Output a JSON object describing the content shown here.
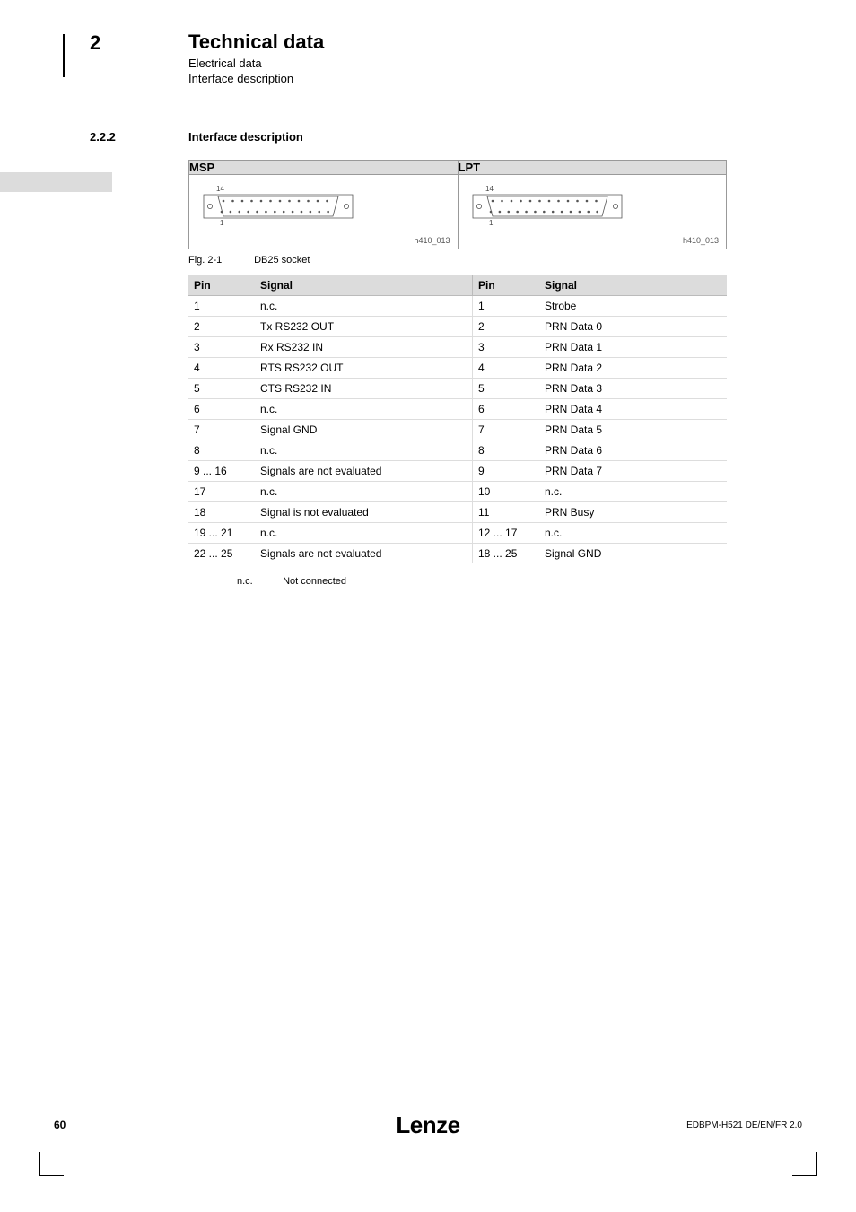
{
  "header": {
    "chapter": "2",
    "title": "Technical data",
    "sub1": "Electrical data",
    "sub2": "Interface description"
  },
  "section": {
    "num": "2.2.2",
    "title": "Interface description"
  },
  "connectors": {
    "left": {
      "label": "MSP",
      "pin_top": "14",
      "pin_bottom": "1",
      "code": "h410_013"
    },
    "right": {
      "label": "LPT",
      "pin_top": "14",
      "pin_bottom": "1",
      "code": "h410_013"
    }
  },
  "figure": {
    "id": "Fig. 2-1",
    "caption": "DB25 socket"
  },
  "pin_table": {
    "headers": {
      "pin": "Pin",
      "signal": "Signal"
    },
    "left": [
      {
        "pin": "1",
        "sig": "n.c."
      },
      {
        "pin": "2",
        "sig": "Tx RS232 OUT"
      },
      {
        "pin": "3",
        "sig": "Rx RS232 IN"
      },
      {
        "pin": "4",
        "sig": "RTS RS232 OUT"
      },
      {
        "pin": "5",
        "sig": "CTS RS232 IN"
      },
      {
        "pin": "6",
        "sig": "n.c."
      },
      {
        "pin": "7",
        "sig": "Signal GND"
      },
      {
        "pin": "8",
        "sig": "n.c."
      },
      {
        "pin": "9 ... 16",
        "sig": "Signals are not evaluated"
      },
      {
        "pin": "17",
        "sig": "n.c."
      },
      {
        "pin": "18",
        "sig": "Signal is not evaluated"
      },
      {
        "pin": "19 ... 21",
        "sig": "n.c."
      },
      {
        "pin": "22 ... 25",
        "sig": "Signals are not evaluated"
      }
    ],
    "right": [
      {
        "pin": "1",
        "sig": "Strobe"
      },
      {
        "pin": "2",
        "sig": "PRN Data 0"
      },
      {
        "pin": "3",
        "sig": "PRN Data 1"
      },
      {
        "pin": "4",
        "sig": "PRN Data 2"
      },
      {
        "pin": "5",
        "sig": "PRN Data 3"
      },
      {
        "pin": "6",
        "sig": "PRN Data 4"
      },
      {
        "pin": "7",
        "sig": "PRN Data 5"
      },
      {
        "pin": "8",
        "sig": "PRN Data 6"
      },
      {
        "pin": "9",
        "sig": "PRN Data 7"
      },
      {
        "pin": "10",
        "sig": "n.c."
      },
      {
        "pin": "11",
        "sig": "PRN Busy"
      },
      {
        "pin": "12 ... 17",
        "sig": "n.c."
      },
      {
        "pin": "18 ... 25",
        "sig": "Signal GND"
      }
    ]
  },
  "legend": {
    "key": "n.c.",
    "value": "Not connected"
  },
  "footer": {
    "page": "60",
    "brand": "Lenze",
    "doc": "EDBPM-H521  DE/EN/FR  2.0"
  },
  "style": {
    "db25_circle_r": 1.3,
    "db25_spacing": 10.5,
    "colors": {
      "header_bg": "#dcdcdc",
      "row_border": "#dddddd",
      "border": "#999999"
    }
  }
}
